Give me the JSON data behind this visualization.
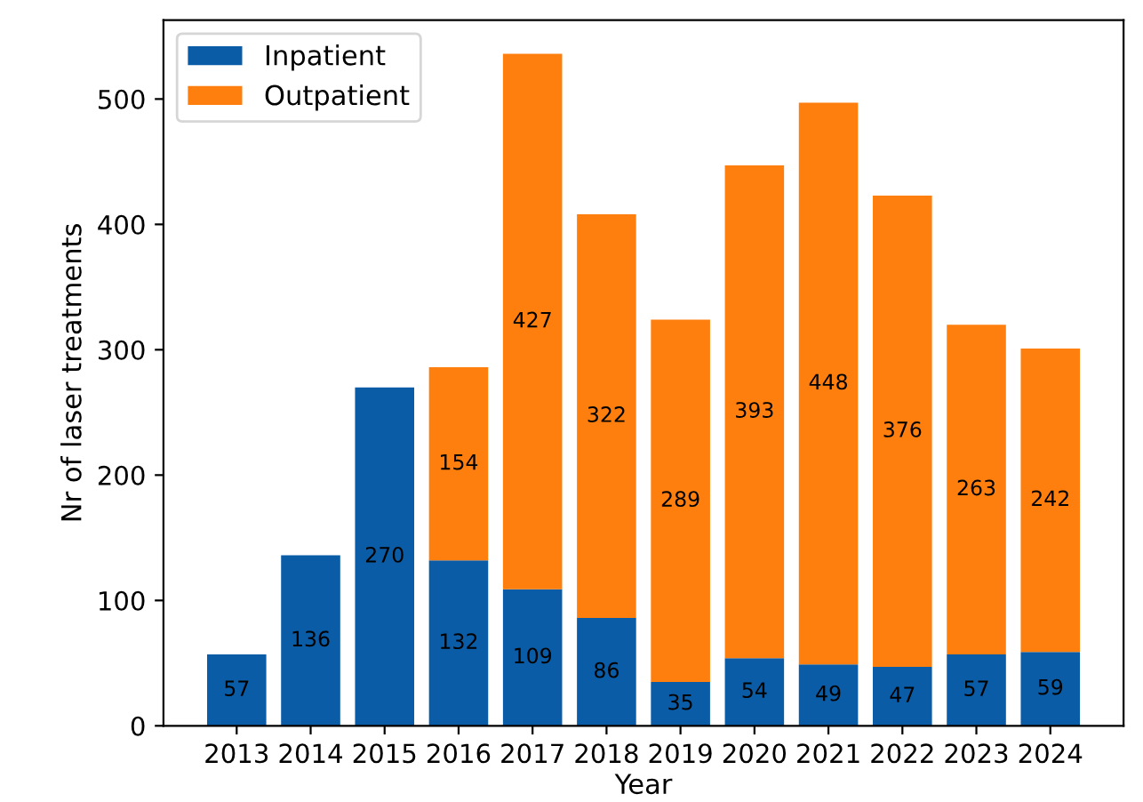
{
  "chart_data": {
    "type": "bar",
    "stacked": true,
    "xlabel": "Year",
    "ylabel": "Nr of laser treatments",
    "categories": [
      "2013",
      "2014",
      "2015",
      "2016",
      "2017",
      "2018",
      "2019",
      "2020",
      "2021",
      "2022",
      "2023",
      "2024"
    ],
    "series": [
      {
        "name": "Inpatient",
        "color": "#0b5ca6",
        "values": [
          57,
          136,
          270,
          132,
          109,
          86,
          35,
          54,
          49,
          47,
          57,
          59
        ]
      },
      {
        "name": "Outpatient",
        "color": "#ff7f0e",
        "values": [
          null,
          null,
          null,
          154,
          427,
          322,
          289,
          393,
          448,
          376,
          263,
          242
        ]
      }
    ],
    "ylim": [
      0,
      563
    ],
    "yticks": [
      0,
      100,
      200,
      300,
      400,
      500
    ],
    "data_labels": true,
    "legend": "top left",
    "grid": false
  }
}
